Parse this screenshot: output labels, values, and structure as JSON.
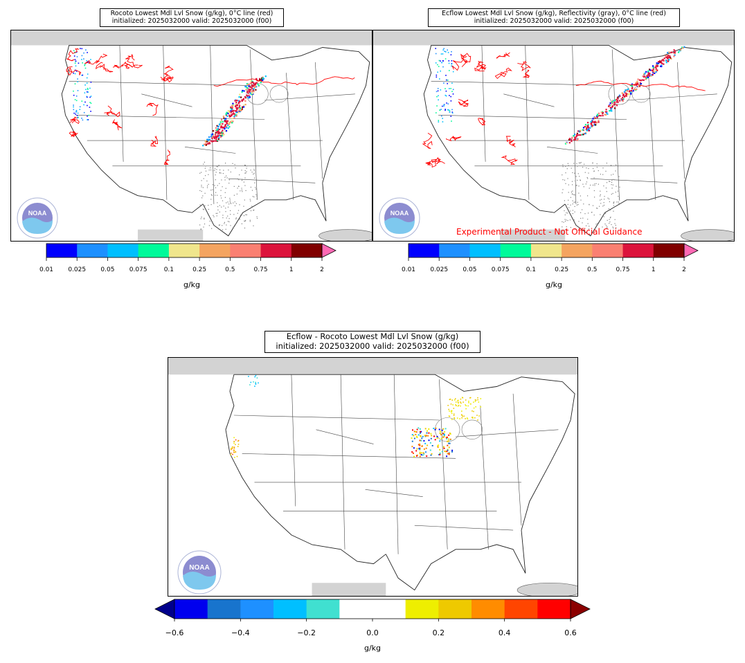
{
  "panels": {
    "rocoto": {
      "title_line1": "Rocoto Lowest Mdl Lvl Snow (g/kg), 0°C line (red)",
      "title_line2": "initialized: 2025032000 valid: 2025032000 (f00)",
      "logo_text": "NOAA"
    },
    "ecflow": {
      "title_line1": "Ecflow Lowest Mdl Lvl Snow (g/kg), Reflectivity (gray), 0°C line (red)",
      "title_line2": "initialized: 2025032000 valid: 2025032000 (f00)",
      "watermark": "Experimental Product - Not Official Guidance",
      "logo_text": "NOAA"
    },
    "diff": {
      "title_line1": "Ecflow - Rocoto Lowest Mdl Lvl Snow (g/kg)",
      "title_line2": "initialized: 2025032000 valid: 2025032000 (f00)",
      "logo_text": "NOAA"
    }
  },
  "colorbar_snow": {
    "label": "g/kg",
    "ticks": [
      "0.01",
      "0.025",
      "0.05",
      "0.075",
      "0.1",
      "0.25",
      "0.5",
      "0.75",
      "1",
      "2"
    ],
    "colors": [
      "#0000ff",
      "#1e90ff",
      "#00bfff",
      "#00fa9a",
      "#f0e68c",
      "#f4a460",
      "#fa8072",
      "#dc143c",
      "#800000"
    ],
    "extend_color": "#ff69b4"
  },
  "colorbar_diff": {
    "label": "g/kg",
    "ticks": [
      "−0.6",
      "−0.4",
      "−0.2",
      "0.0",
      "0.2",
      "0.4",
      "0.6"
    ],
    "colors": [
      "#0000ee",
      "#1874cd",
      "#1e90ff",
      "#00bfff",
      "#40e0d0",
      "#ffffff",
      "#ffffff",
      "#eeee00",
      "#eec900",
      "#ff8c00",
      "#ff4500",
      "#ff0000"
    ],
    "extend_low": "#00008b",
    "extend_high": "#8b0000"
  }
}
